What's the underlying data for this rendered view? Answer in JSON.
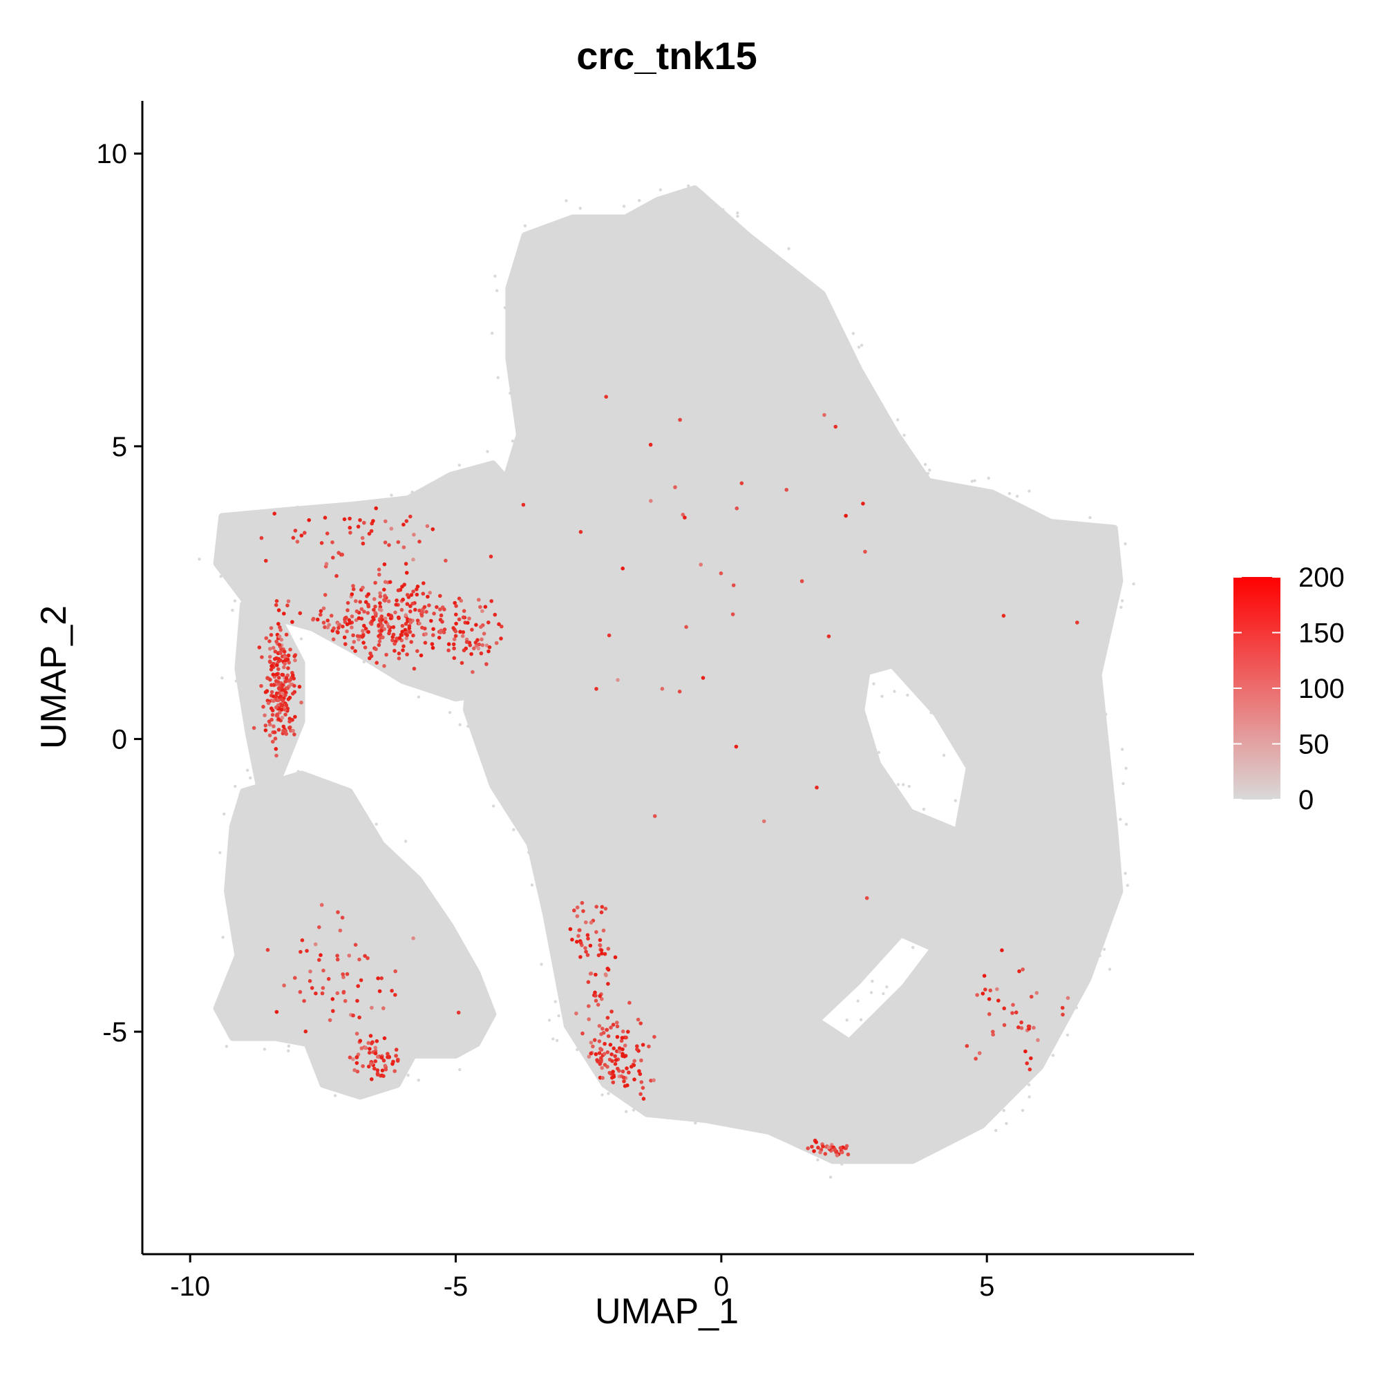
{
  "chart_data": {
    "type": "scatter",
    "title": "crc_tnk15",
    "xlabel": "UMAP_1",
    "ylabel": "UMAP_2",
    "xlim": [
      -10.9,
      8.9
    ],
    "ylim": [
      -8.8,
      10.9
    ],
    "x_ticks": [
      -10,
      -5,
      0,
      5
    ],
    "x_tick_labels": [
      "-10",
      "-5",
      "0",
      "5"
    ],
    "y_ticks": [
      10,
      5,
      0,
      -5
    ],
    "y_tick_labels": [
      "10",
      "5",
      "0",
      "-5"
    ],
    "grid": false,
    "legend_placement": "right",
    "colorbar": {
      "min": 0,
      "max": 200,
      "ticks": [
        200,
        150,
        100,
        50,
        0
      ],
      "tick_labels": [
        "200",
        "150",
        "100",
        "50",
        "0"
      ],
      "low_color": "#d9d9d9",
      "high_color": "#ff0000"
    },
    "background_color": "#d9d9d9",
    "highlight_color": "#e8170f",
    "regions": [
      {
        "name": "main-body",
        "polygon": [
          [
            -3.7,
            8.6
          ],
          [
            -2.8,
            8.9
          ],
          [
            -1.8,
            8.9
          ],
          [
            -1.2,
            9.2
          ],
          [
            -0.5,
            9.4
          ],
          [
            0.5,
            8.6
          ],
          [
            1.9,
            7.6
          ],
          [
            2.6,
            6.3
          ],
          [
            3.3,
            5.2
          ],
          [
            3.9,
            4.4
          ],
          [
            5.1,
            4.2
          ],
          [
            6.2,
            3.7
          ],
          [
            7.4,
            3.6
          ],
          [
            7.5,
            2.7
          ],
          [
            7.1,
            1.1
          ],
          [
            7.4,
            -1.5
          ],
          [
            7.5,
            -2.6
          ],
          [
            6.9,
            -4.1
          ],
          [
            6.0,
            -5.6
          ],
          [
            4.9,
            -6.6
          ],
          [
            3.6,
            -7.2
          ],
          [
            2.1,
            -7.2
          ],
          [
            0.9,
            -6.7
          ],
          [
            -0.3,
            -6.5
          ],
          [
            -1.4,
            -6.4
          ],
          [
            -2.2,
            -5.9
          ],
          [
            -2.9,
            -4.9
          ],
          [
            -3.3,
            -3.0
          ],
          [
            -3.6,
            -1.8
          ],
          [
            -4.3,
            -0.8
          ],
          [
            -4.8,
            0.5
          ],
          [
            -4.7,
            1.4
          ],
          [
            -4.2,
            2.3
          ],
          [
            -3.9,
            3.4
          ],
          [
            -4.1,
            4.3
          ],
          [
            -3.8,
            5.2
          ],
          [
            -4.0,
            6.5
          ],
          [
            -4.0,
            7.7
          ]
        ]
      },
      {
        "name": "left-upper-band",
        "polygon": [
          [
            -9.4,
            3.8
          ],
          [
            -8.2,
            3.9
          ],
          [
            -6.9,
            4.0
          ],
          [
            -5.9,
            4.1
          ],
          [
            -5.1,
            4.5
          ],
          [
            -4.3,
            4.7
          ],
          [
            -3.9,
            4.3
          ],
          [
            -3.6,
            3.0
          ],
          [
            -3.6,
            1.6
          ],
          [
            -4.3,
            0.8
          ],
          [
            -5.0,
            0.7
          ],
          [
            -6.0,
            1.0
          ],
          [
            -6.9,
            1.5
          ],
          [
            -7.7,
            1.9
          ],
          [
            -8.5,
            2.1
          ],
          [
            -9.0,
            2.4
          ],
          [
            -9.5,
            3.0
          ]
        ]
      },
      {
        "name": "left-vertical-band",
        "polygon": [
          [
            -9.0,
            2.3
          ],
          [
            -8.3,
            2.0
          ],
          [
            -7.9,
            1.3
          ],
          [
            -7.9,
            0.3
          ],
          [
            -8.3,
            -0.6
          ],
          [
            -8.7,
            -0.8
          ],
          [
            -8.9,
            0.1
          ],
          [
            -9.1,
            1.2
          ]
        ]
      },
      {
        "name": "lower-left-lobe",
        "polygon": [
          [
            -9.0,
            -0.9
          ],
          [
            -7.9,
            -0.6
          ],
          [
            -7.0,
            -0.9
          ],
          [
            -6.4,
            -1.8
          ],
          [
            -5.7,
            -2.4
          ],
          [
            -5.1,
            -3.2
          ],
          [
            -4.6,
            -4.0
          ],
          [
            -4.3,
            -4.7
          ],
          [
            -4.6,
            -5.2
          ],
          [
            -5.0,
            -5.4
          ],
          [
            -5.8,
            -5.4
          ],
          [
            -6.1,
            -5.9
          ],
          [
            -6.8,
            -6.1
          ],
          [
            -7.5,
            -5.9
          ],
          [
            -7.8,
            -5.2
          ],
          [
            -8.4,
            -5.1
          ],
          [
            -9.2,
            -5.1
          ],
          [
            -9.5,
            -4.6
          ],
          [
            -9.1,
            -3.7
          ],
          [
            -9.3,
            -2.6
          ],
          [
            -9.2,
            -1.5
          ]
        ]
      }
    ],
    "holes": [
      {
        "name": "inner-hole-upper-right",
        "polygon": [
          [
            2.8,
            1.1
          ],
          [
            3.2,
            1.2
          ],
          [
            4.0,
            0.4
          ],
          [
            4.6,
            -0.5
          ],
          [
            4.4,
            -1.5
          ],
          [
            3.6,
            -1.2
          ],
          [
            3.0,
            -0.4
          ],
          [
            2.7,
            0.5
          ]
        ]
      },
      {
        "name": "inner-hole-lower",
        "polygon": [
          [
            2.4,
            -5.1
          ],
          [
            3.4,
            -4.2
          ],
          [
            3.9,
            -3.6
          ],
          [
            3.4,
            -3.4
          ],
          [
            2.6,
            -4.2
          ],
          [
            1.9,
            -4.8
          ]
        ]
      }
    ],
    "highlight_clusters": [
      {
        "name": "left-vertical-band",
        "center": [
          -8.3,
          1.0
        ],
        "spread": [
          0.25,
          0.9
        ],
        "count": 220
      },
      {
        "name": "left-upper-band",
        "center": [
          -6.4,
          2.0
        ],
        "spread": [
          1.0,
          0.6
        ],
        "count": 260
      },
      {
        "name": "left-upper-band-right",
        "center": [
          -4.7,
          1.8
        ],
        "spread": [
          0.5,
          0.5
        ],
        "count": 60
      },
      {
        "name": "left-upper-band-top",
        "center": [
          -6.8,
          3.4
        ],
        "spread": [
          1.2,
          0.5
        ],
        "count": 50
      },
      {
        "name": "lower-left-lobe-bottom",
        "center": [
          -6.5,
          -5.5
        ],
        "spread": [
          0.4,
          0.35
        ],
        "count": 60
      },
      {
        "name": "lower-left-lobe-scatter",
        "center": [
          -7.2,
          -4.0
        ],
        "spread": [
          1.0,
          0.9
        ],
        "count": 60
      },
      {
        "name": "main-left-edge-bottom",
        "center": [
          -2.0,
          -5.4
        ],
        "spread": [
          0.5,
          0.6
        ],
        "count": 110
      },
      {
        "name": "main-left-edge-mid",
        "center": [
          -2.4,
          -3.6
        ],
        "spread": [
          0.4,
          0.9
        ],
        "count": 60
      },
      {
        "name": "main-bottom-tip",
        "center": [
          2.0,
          -7.0
        ],
        "spread": [
          0.35,
          0.1
        ],
        "count": 35
      },
      {
        "name": "main-right-edge",
        "center": [
          5.6,
          -4.8
        ],
        "spread": [
          0.8,
          0.8
        ],
        "count": 40
      },
      {
        "name": "main-sparse",
        "center": [
          0.5,
          2.0
        ],
        "spread": [
          4.0,
          4.0
        ],
        "count": 40
      }
    ]
  }
}
